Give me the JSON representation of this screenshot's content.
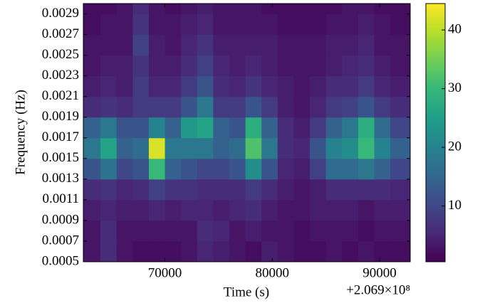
{
  "chart_data": {
    "type": "heatmap",
    "xlabel": "Time (s)",
    "ylabel": "Frequency (Hz)",
    "x_offset_label": "+2.069×10⁸",
    "x_edges": [
      62400,
      64000,
      65500,
      67000,
      68500,
      70000,
      71500,
      73000,
      74500,
      76000,
      77500,
      79000,
      80500,
      82000,
      83500,
      85000,
      86500,
      88000,
      89500,
      91000,
      92850
    ],
    "y_edges": [
      0.0005,
      0.0007,
      0.0009,
      0.0011,
      0.0013,
      0.0015,
      0.0017,
      0.0019,
      0.0021,
      0.0023,
      0.0025,
      0.0027,
      0.0029,
      0.003
    ],
    "z": [
      [
        3,
        6,
        3,
        2,
        2,
        2,
        3,
        5,
        4,
        3,
        2,
        4,
        3,
        2,
        2,
        3,
        2,
        3,
        2,
        2
      ],
      [
        3,
        6,
        3,
        3,
        3,
        3,
        3,
        6,
        5,
        3,
        4,
        3,
        3,
        2,
        3,
        3,
        3,
        2,
        3,
        3
      ],
      [
        4,
        5,
        4,
        4,
        5,
        4,
        5,
        5,
        4,
        5,
        6,
        4,
        3,
        3,
        4,
        4,
        4,
        3,
        4,
        4
      ],
      [
        6,
        7,
        5,
        6,
        9,
        7,
        7,
        6,
        6,
        6,
        8,
        6,
        4,
        3,
        4,
        6,
        6,
        6,
        6,
        5
      ],
      [
        12,
        17,
        10,
        12,
        30,
        14,
        12,
        10,
        10,
        12,
        22,
        12,
        5,
        4,
        9,
        16,
        16,
        18,
        14,
        10
      ],
      [
        18,
        26,
        14,
        16,
        42,
        18,
        18,
        18,
        14,
        16,
        32,
        18,
        6,
        5,
        12,
        20,
        22,
        30,
        20,
        14
      ],
      [
        14,
        18,
        12,
        12,
        20,
        14,
        24,
        26,
        14,
        12,
        28,
        14,
        6,
        4,
        8,
        14,
        18,
        28,
        16,
        10
      ],
      [
        6,
        7,
        6,
        8,
        8,
        8,
        12,
        18,
        8,
        8,
        12,
        8,
        4,
        3,
        5,
        8,
        9,
        12,
        8,
        6
      ],
      [
        4,
        5,
        4,
        8,
        5,
        5,
        8,
        12,
        6,
        5,
        7,
        5,
        4,
        3,
        4,
        6,
        6,
        8,
        5,
        4
      ],
      [
        3,
        4,
        4,
        7,
        4,
        4,
        6,
        9,
        5,
        4,
        5,
        4,
        3,
        3,
        3,
        4,
        5,
        6,
        4,
        3
      ],
      [
        3,
        3,
        3,
        9,
        4,
        3,
        5,
        7,
        4,
        4,
        4,
        4,
        3,
        3,
        3,
        4,
        4,
        5,
        3,
        3
      ],
      [
        2,
        3,
        3,
        7,
        3,
        3,
        4,
        5,
        3,
        3,
        3,
        3,
        2,
        2,
        2,
        3,
        3,
        4,
        3,
        2
      ],
      [
        2,
        2,
        3,
        6,
        3,
        2,
        3,
        4,
        3,
        3,
        3,
        2,
        2,
        2,
        2,
        2,
        3,
        3,
        2,
        2
      ]
    ],
    "colormap": "viridis",
    "xlim": [
      62400,
      92850
    ],
    "ylim": [
      0.0005,
      0.003
    ],
    "xticks": [
      70000,
      80000,
      90000
    ],
    "yticks": [
      0.0005,
      0.0007,
      0.0009,
      0.0011,
      0.0013,
      0.0015,
      0.0017,
      0.0019,
      0.0021,
      0.0023,
      0.0025,
      0.0027,
      0.0029
    ],
    "clim": [
      0.5,
      44.5
    ],
    "cticks": [
      10,
      20,
      30,
      40
    ]
  }
}
